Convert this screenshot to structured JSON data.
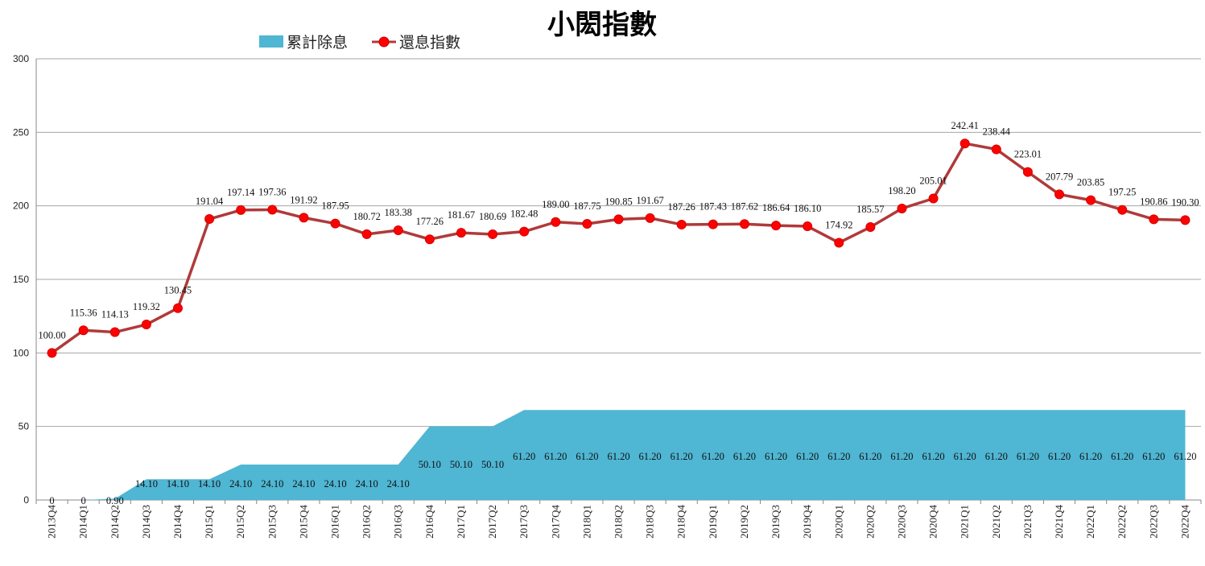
{
  "chart_data": {
    "type": "area+line",
    "title": "小閎指數",
    "xlabel": "",
    "ylabel": "",
    "ylim": [
      0,
      300
    ],
    "yticks": [
      0,
      50,
      100,
      150,
      200,
      250,
      300
    ],
    "ytick_labels": [
      "0",
      "50",
      "100",
      "150",
      "200",
      "250",
      "300"
    ],
    "grid": true,
    "legend_position": "top-left",
    "categories": [
      "2013Q4",
      "2014Q1",
      "2014Q2",
      "2014Q3",
      "2014Q4",
      "2015Q1",
      "2015Q2",
      "2015Q3",
      "2015Q4",
      "2016Q1",
      "2016Q2",
      "2016Q3",
      "2016Q4",
      "2017Q1",
      "2017Q2",
      "2017Q3",
      "2017Q4",
      "2018Q1",
      "2018Q2",
      "2018Q3",
      "2018Q4",
      "2019Q1",
      "2019Q2",
      "2019Q3",
      "2019Q4",
      "2020Q1",
      "2020Q2",
      "2020Q3",
      "2020Q4",
      "2021Q1",
      "2021Q2",
      "2021Q3",
      "2021Q4",
      "2022Q1",
      "2022Q2",
      "2022Q3",
      "2022Q4"
    ],
    "series": [
      {
        "name": "累計除息",
        "kind": "area",
        "color": "#4fb6d3",
        "values": [
          0,
          0,
          0.9,
          14.1,
          14.1,
          14.1,
          24.1,
          24.1,
          24.1,
          24.1,
          24.1,
          24.1,
          50.1,
          50.1,
          50.1,
          61.2,
          61.2,
          61.2,
          61.2,
          61.2,
          61.2,
          61.2,
          61.2,
          61.2,
          61.2,
          61.2,
          61.2,
          61.2,
          61.2,
          61.2,
          61.2,
          61.2,
          61.2,
          61.2,
          61.2,
          61.2,
          61.2
        ],
        "labels": [
          "0",
          "0",
          "0.90",
          "14.10",
          "14.10",
          "14.10",
          "24.10",
          "24.10",
          "24.10",
          "24.10",
          "24.10",
          "24.10",
          "50.10",
          "50.10",
          "50.10",
          "61.20",
          "61.20",
          "61.20",
          "61.20",
          "61.20",
          "61.20",
          "61.20",
          "61.20",
          "61.20",
          "61.20",
          "61.20",
          "61.20",
          "61.20",
          "61.20",
          "61.20",
          "61.20",
          "61.20",
          "61.20",
          "61.20",
          "61.20",
          "61.20",
          "61.20"
        ]
      },
      {
        "name": "還息指數",
        "kind": "line",
        "color": "#b03a3a",
        "marker_color": "#ff0000",
        "values": [
          100.0,
          115.36,
          114.13,
          119.32,
          130.45,
          191.04,
          197.14,
          197.36,
          191.92,
          187.95,
          180.72,
          183.38,
          177.26,
          181.67,
          180.69,
          182.48,
          189.0,
          187.75,
          190.85,
          191.67,
          187.26,
          187.43,
          187.62,
          186.64,
          186.1,
          174.92,
          185.57,
          198.2,
          205.01,
          242.41,
          238.44,
          223.01,
          207.79,
          203.85,
          197.25,
          190.86,
          190.3
        ],
        "labels": [
          "100.00",
          "115.36",
          "114.13",
          "119.32",
          "130.45",
          "191.04",
          "197.14",
          "197.36",
          "191.92",
          "187.95",
          "180.72",
          "183.38",
          "177.26",
          "181.67",
          "180.69",
          "182.48",
          "189.00",
          "187.75",
          "190.85",
          "191.67",
          "187.26",
          "187.43",
          "187.62",
          "186.64",
          "186.10",
          "174.92",
          "185.57",
          "198.20",
          "205.01",
          "242.41",
          "238.44",
          "223.01",
          "207.79",
          "203.85",
          "197.25",
          "190.86",
          "190.30"
        ]
      }
    ]
  }
}
